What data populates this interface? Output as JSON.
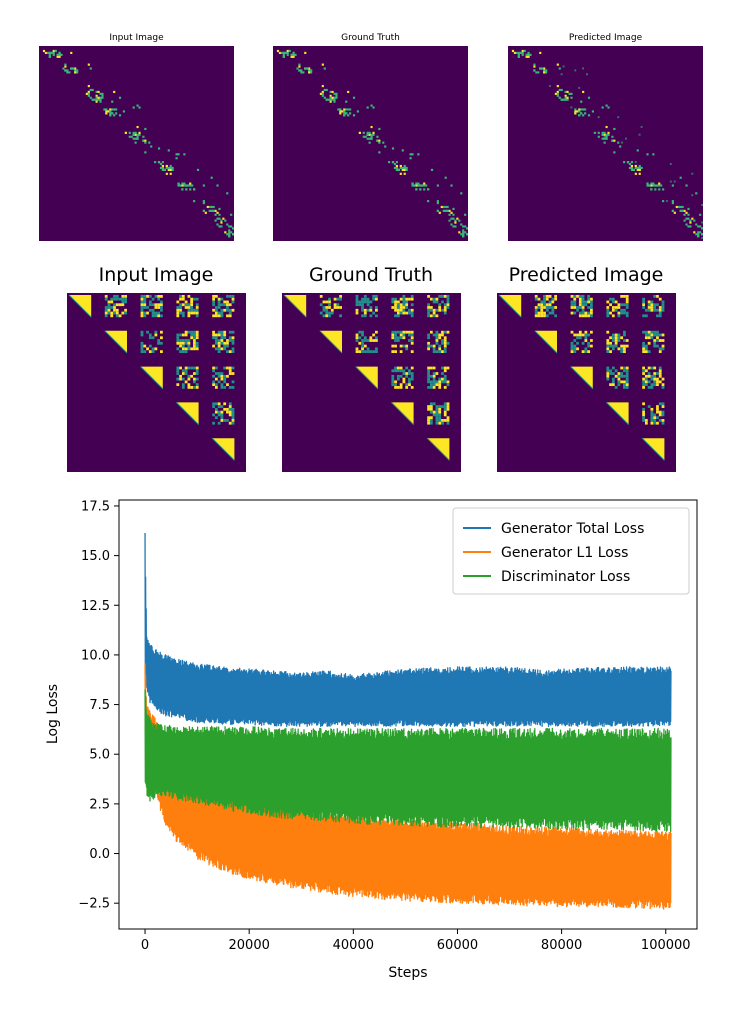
{
  "row1": {
    "titles": [
      "Input Image",
      "Ground Truth",
      "Predicted Image"
    ],
    "colors": {
      "background": "#440154",
      "pixel_teal": "#35b779",
      "pixel_yellow": "#fde725"
    }
  },
  "row2": {
    "titles": [
      "Input Image",
      "Ground Truth",
      "Predicted Image"
    ],
    "colors": {
      "background": "#440154",
      "fill_yellow": "#fde725",
      "pixel_teal": "#21918c"
    }
  },
  "chart_data": {
    "type": "line",
    "xlabel": "Steps",
    "ylabel": "Log Loss",
    "xlim": [
      -5000,
      106000
    ],
    "ylim": [
      -3.8,
      17.8
    ],
    "x_ticks": [
      0,
      20000,
      40000,
      60000,
      80000,
      100000
    ],
    "x_tick_labels": [
      "0",
      "20000",
      "40000",
      "60000",
      "80000",
      "100000"
    ],
    "y_ticks": [
      -2.5,
      0.0,
      2.5,
      5.0,
      7.5,
      10.0,
      12.5,
      15.0,
      17.5
    ],
    "y_tick_labels": [
      "−2.5",
      "0.0",
      "2.5",
      "5.0",
      "7.5",
      "10.0",
      "12.5",
      "15.0",
      "17.5"
    ],
    "grid": false,
    "legend_position": "top-right",
    "series": [
      {
        "name": "Generator Total Loss",
        "color": "#1f77b4",
        "x": [
          0,
          300,
          1000,
          2000,
          4000,
          6000,
          10000,
          15000,
          20000,
          25000,
          30000,
          35000,
          40000,
          50000,
          60000,
          70000,
          78000,
          80000,
          90000,
          100000,
          101000
        ],
        "upper": [
          16.7,
          11.0,
          10.6,
          10.3,
          10.0,
          9.8,
          9.6,
          9.4,
          9.3,
          9.2,
          9.1,
          9.2,
          9.0,
          9.3,
          9.4,
          9.4,
          9.2,
          9.3,
          9.4,
          9.4,
          9.4
        ],
        "lower": [
          8.0,
          8.3,
          7.5,
          7.2,
          6.9,
          6.8,
          6.6,
          6.5,
          6.5,
          6.4,
          6.4,
          6.4,
          6.4,
          6.4,
          6.4,
          6.4,
          6.4,
          6.4,
          6.4,
          6.4,
          6.4
        ]
      },
      {
        "name": "Generator L1 Loss",
        "color": "#ff7f0e",
        "x": [
          0,
          300,
          1000,
          2000,
          4000,
          6000,
          10000,
          15000,
          20000,
          25000,
          30000,
          35000,
          40000,
          50000,
          60000,
          70000,
          80000,
          90000,
          100000,
          101000
        ],
        "upper": [
          9.8,
          7.6,
          7.3,
          6.8,
          5.4,
          4.6,
          4.0,
          3.4,
          2.9,
          2.6,
          2.3,
          2.1,
          2.0,
          1.8,
          1.6,
          1.4,
          1.3,
          1.2,
          1.1,
          1.1
        ],
        "lower": [
          6.5,
          5.2,
          4.0,
          2.9,
          1.4,
          0.6,
          -0.3,
          -0.9,
          -1.3,
          -1.6,
          -1.8,
          -2.0,
          -2.2,
          -2.4,
          -2.5,
          -2.6,
          -2.7,
          -2.7,
          -2.8,
          -2.9
        ]
      },
      {
        "name": "Discriminator Loss",
        "color": "#2ca02c",
        "x": [
          0,
          300,
          1000,
          2000,
          4000,
          6000,
          10000,
          15000,
          20000,
          25000,
          30000,
          35000,
          40000,
          50000,
          60000,
          70000,
          80000,
          90000,
          100000,
          101000
        ],
        "upper": [
          8.6,
          7.2,
          6.9,
          6.6,
          6.5,
          6.4,
          6.4,
          6.4,
          6.4,
          6.3,
          6.3,
          6.3,
          6.3,
          6.3,
          6.3,
          6.3,
          6.3,
          6.3,
          6.3,
          6.3
        ],
        "lower": [
          3.5,
          2.8,
          2.6,
          2.8,
          2.9,
          2.7,
          2.5,
          2.2,
          2.0,
          1.8,
          1.7,
          1.6,
          1.5,
          1.4,
          1.3,
          1.3,
          1.2,
          1.2,
          1.1,
          1.1
        ]
      }
    ]
  }
}
